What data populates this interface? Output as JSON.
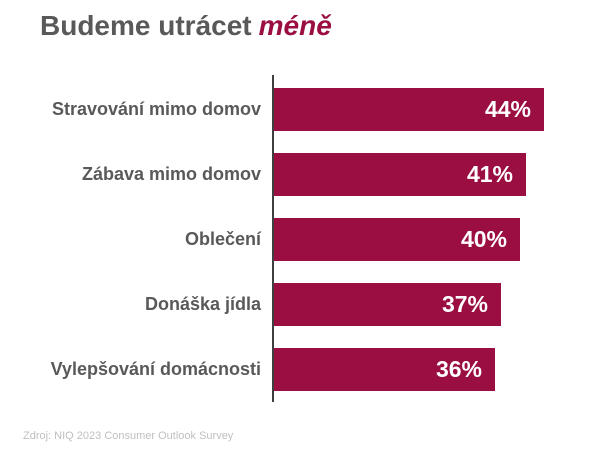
{
  "title": {
    "prefix": "Budeme utrácet",
    "emphasis": "méně"
  },
  "source": "Zdroj: NIQ 2023 Consumer Outlook Survey",
  "colors": {
    "bar": "#9A0E42",
    "title_text": "#595959",
    "title_emphasis": "#9A0E42",
    "category_label": "#595959",
    "value_label": "#FFFFFF",
    "axis_line": "#3F3F3F",
    "source_text": "#BFBFBF",
    "background": "#FFFFFF"
  },
  "chart_data": {
    "type": "bar",
    "orientation": "horizontal",
    "title": "Budeme utrácet méně",
    "categories": [
      "Stravování mimo domov",
      "Zábava mimo domov",
      "Oblečení",
      "Donáška jídla",
      "Vylepšování domácnosti"
    ],
    "values": [
      44,
      41,
      40,
      37,
      36
    ],
    "value_labels": [
      "44%",
      "41%",
      "40%",
      "37%",
      "36%"
    ],
    "xlabel": "",
    "ylabel": "",
    "xlim": [
      0,
      48
    ],
    "grid": false,
    "legend": false,
    "value_label_position": "inside-end",
    "source": "Zdroj: NIQ 2023 Consumer Outlook Survey"
  }
}
